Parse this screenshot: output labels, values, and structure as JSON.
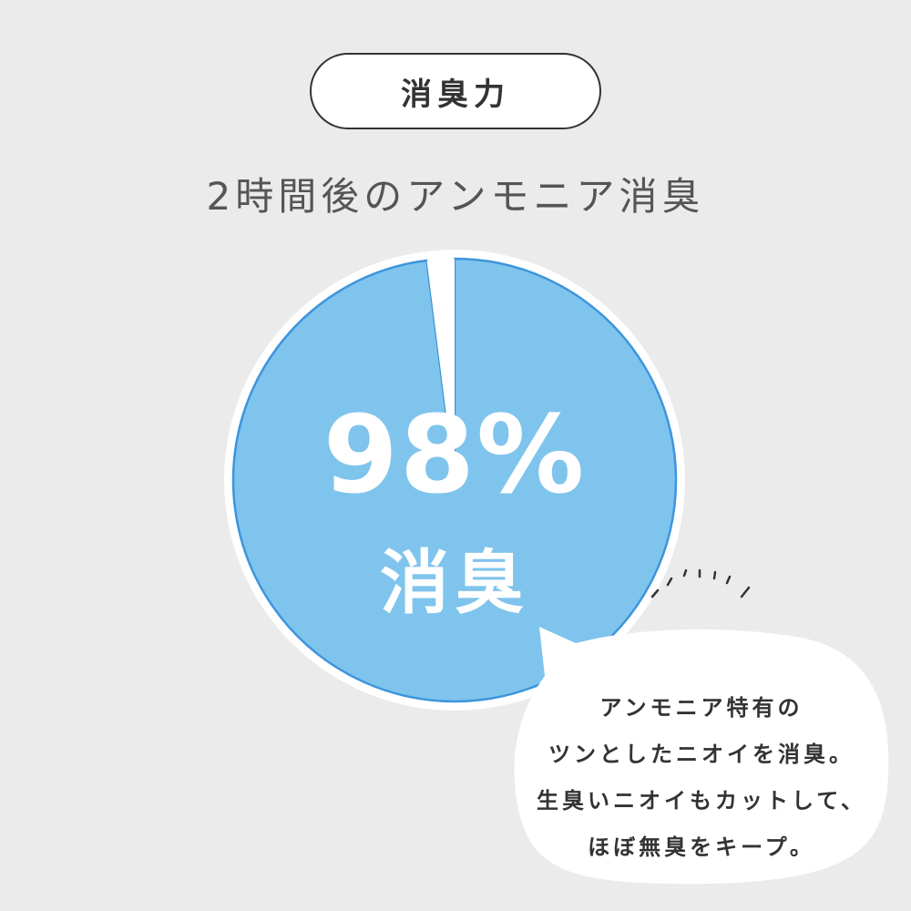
{
  "badge": "消臭力",
  "heading": "2時間後のアンモニア消臭",
  "chart_data": {
    "type": "pie",
    "values": [
      98,
      2
    ],
    "data_labels": [
      "98%",
      "消臭"
    ],
    "colors": {
      "main": "#7fc4ec",
      "stroke": "#3d95dc",
      "remainder": "#ffffff"
    }
  },
  "bubble": {
    "lines": [
      "アンモニア特有の",
      "ツンとしたニオイを消臭。",
      "生臭いニオイもカットして、",
      "ほぼ無臭をキープ。"
    ]
  }
}
